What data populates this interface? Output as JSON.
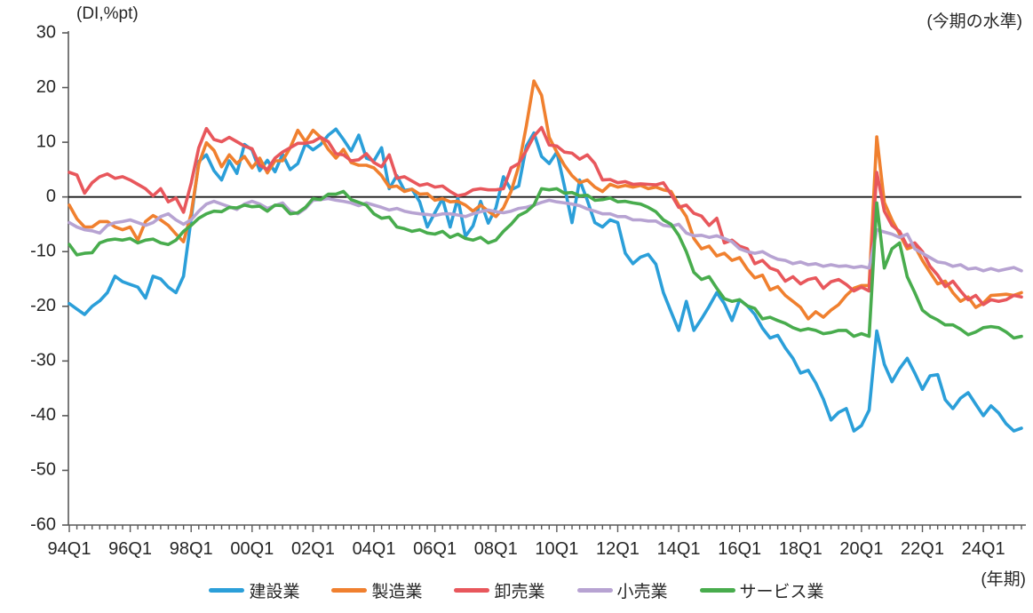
{
  "chart_data": {
    "type": "line",
    "title": "",
    "y_unit_label": "(DI,%pt)",
    "right_annotation": "(今期の水準)",
    "x_unit_label": "(年期)",
    "x_start": "1994Q1",
    "x_end": "2025Q2",
    "x_frequency": "quarterly",
    "x_tick_labels": [
      "94Q1",
      "96Q1",
      "98Q1",
      "00Q1",
      "02Q1",
      "04Q1",
      "06Q1",
      "08Q1",
      "10Q1",
      "12Q1",
      "14Q1",
      "16Q1",
      "18Q1",
      "20Q1",
      "22Q1",
      "24Q1"
    ],
    "x_label_every_n_quarters": 8,
    "ylim": [
      -60,
      30
    ],
    "y_ticks": [
      30,
      20,
      10,
      0,
      -10,
      -20,
      -30,
      -40,
      -50,
      -60
    ],
    "zero_line": true,
    "grid": false,
    "legend_position": "bottom",
    "axis_color": "#595959",
    "zero_line_color": "#1a1a1a",
    "text_color": "#262626",
    "series": [
      {
        "key": "construction",
        "name": "建設業",
        "color": "#2B9FD9",
        "values": [
          -19.5,
          -20.5,
          -21.5,
          -20,
          -19,
          -17.5,
          -14.5,
          -15.5,
          -16,
          -16.5,
          -18.5,
          -14.5,
          -15,
          -16.5,
          -17.5,
          -14.5,
          -4,
          6.5,
          7.7,
          4.8,
          3.1,
          6.6,
          4.3,
          9.6,
          8.6,
          4.8,
          6.7,
          4.6,
          7.8,
          5,
          6.1,
          9.7,
          8.6,
          9.6,
          11.3,
          12.4,
          10.5,
          8.4,
          11.3,
          7.1,
          6.6,
          9,
          1.5,
          3.9,
          1.2,
          1.4,
          -0.9,
          -5.5,
          -2.9,
          -0.3,
          -5.5,
          -0.2,
          -7.2,
          -5.3,
          -0.8,
          -4.8,
          -2,
          3.7,
          1.3,
          2,
          9.3,
          11.7,
          7.4,
          6.1,
          8.2,
          2,
          -4.7,
          3.1,
          -0.6,
          -4.7,
          -5.5,
          -4.2,
          -4.7,
          -10.3,
          -12.2,
          -11,
          -10.5,
          -12.3,
          -17.5,
          -21,
          -24.4,
          -19.1,
          -24.4,
          -22.3,
          -20,
          -17.5,
          -19.5,
          -22.6,
          -18.8,
          -19.9,
          -21.5,
          -24,
          -25.8,
          -25.3,
          -27.6,
          -29.5,
          -32.2,
          -31.7,
          -34,
          -37,
          -40.8,
          -39.4,
          -38.7,
          -42.8,
          -41.8,
          -39,
          -24.5,
          -30.6,
          -33.8,
          -31.4,
          -29.5,
          -32.2,
          -35.2,
          -32.7,
          -32.5,
          -37.1,
          -38.7,
          -36.8,
          -35.8,
          -37.9,
          -40,
          -38.2,
          -39.5,
          -41.5,
          -42.8,
          -42.3
        ]
      },
      {
        "key": "manufacturing",
        "name": "製造業",
        "color": "#F0802F",
        "values": [
          -1.5,
          -4,
          -5.5,
          -5.5,
          -4.5,
          -4.5,
          -5.5,
          -6,
          -5.5,
          -7.9,
          -4.5,
          -3.4,
          -4.2,
          -5.2,
          -6.8,
          -8.2,
          -3.1,
          6,
          9.9,
          8.5,
          5.5,
          7.7,
          6.1,
          7.4,
          5.3,
          7.1,
          4.4,
          6.6,
          6.6,
          9,
          12.2,
          10.1,
          12.2,
          10.9,
          8.7,
          7.1,
          8.7,
          6.3,
          5.8,
          5.8,
          5.3,
          3.9,
          1.8,
          2,
          1,
          1.4,
          0.5,
          0.6,
          -0.6,
          -0.3,
          -0.9,
          -0.8,
          -1.5,
          -2.6,
          -1.5,
          -2.6,
          -3.6,
          -2,
          1,
          5.6,
          13,
          21.2,
          18.6,
          10.9,
          8.2,
          5.8,
          3.9,
          2.6,
          3.1,
          1.8,
          1,
          2.3,
          1.8,
          2.1,
          1.8,
          2.1,
          1.5,
          1.8,
          1.3,
          1,
          -1.5,
          -3.6,
          -7.6,
          -9.5,
          -9,
          -10.8,
          -10.3,
          -11.6,
          -11.1,
          -13.2,
          -14.8,
          -14.3,
          -17,
          -16.4,
          -18,
          -19.1,
          -20.2,
          -22.3,
          -21,
          -22,
          -20.7,
          -19.7,
          -18,
          -16.7,
          -16.2,
          -16.2,
          11,
          -1,
          -4.2,
          -6.8,
          -9.5,
          -9,
          -11.6,
          -13.8,
          -15.9,
          -15.4,
          -17.5,
          -19.1,
          -18.3,
          -20.2,
          -19.4,
          -18,
          -17.9,
          -17.8,
          -18,
          -17.5
        ]
      },
      {
        "key": "wholesale",
        "name": "卸売業",
        "color": "#E8575C",
        "values": [
          4.5,
          4,
          0.7,
          2.6,
          3.7,
          4.2,
          3.4,
          3.7,
          3.1,
          2.3,
          1.5,
          0.2,
          1.5,
          -0.9,
          -0.2,
          -2.8,
          2.5,
          9,
          12.5,
          10.5,
          10.1,
          10.9,
          10.1,
          9.3,
          8.8,
          5.8,
          5,
          7.1,
          8.2,
          9,
          9.8,
          9.8,
          10.1,
          10.9,
          10.1,
          7.9,
          7.7,
          6.6,
          6.8,
          7.9,
          6.3,
          5.5,
          7.7,
          3.4,
          3.7,
          2.9,
          2.1,
          2.4,
          1.8,
          2,
          1,
          0.2,
          0.5,
          1.3,
          1.5,
          1.3,
          1.3,
          1.5,
          5.3,
          6.1,
          8.5,
          11.1,
          12.7,
          9.5,
          9.3,
          8.2,
          8,
          6.9,
          7.7,
          6.1,
          3.1,
          3.2,
          2.6,
          2.8,
          2.3,
          2.4,
          2.3,
          2.2,
          2.6,
          0.5,
          -1.9,
          -1.5,
          -3,
          -3.5,
          -5.2,
          -3.9,
          -8.4,
          -7.9,
          -9,
          -9.5,
          -12.2,
          -11.6,
          -13,
          -13.5,
          -15.4,
          -14.6,
          -15.9,
          -15.1,
          -14.8,
          -16.7,
          -15.5,
          -15.1,
          -16,
          -17.2,
          -16.5,
          -17.2,
          4.5,
          -2.6,
          -5.2,
          -6.3,
          -9,
          -8.4,
          -10,
          -12.7,
          -14.3,
          -16.4,
          -15.4,
          -17.2,
          -18.8,
          -18,
          -19.7,
          -18.8,
          -19.1,
          -18.8,
          -18,
          -18.3
        ]
      },
      {
        "key": "retail",
        "name": "小売業",
        "color": "#B7A3D2",
        "values": [
          -4.7,
          -5.5,
          -6,
          -6.2,
          -6.6,
          -5.2,
          -4.7,
          -4.5,
          -4.2,
          -4.7,
          -5.2,
          -4.7,
          -3.6,
          -3.1,
          -4.2,
          -5,
          -4.2,
          -2.6,
          -1.3,
          -0.8,
          -1.3,
          -1.8,
          -2.3,
          -1.3,
          -0.8,
          -1.3,
          -2.1,
          -1.6,
          -1.1,
          -2.6,
          -3.1,
          -2.1,
          -0.6,
          -0.5,
          -0.3,
          -0.6,
          -0.8,
          -1.1,
          -1.6,
          -1.1,
          -1.5,
          -1.9,
          -2.4,
          -2.1,
          -2.6,
          -2.9,
          -3.1,
          -3.2,
          -3.4,
          -3.1,
          -3.1,
          -3.3,
          -3.6,
          -3.1,
          -2.7,
          -2.4,
          -2.7,
          -2.9,
          -2.6,
          -2.1,
          -1.9,
          -1.5,
          -1,
          -0.6,
          -0.9,
          -1.1,
          -1.3,
          -1.6,
          -2.2,
          -2.6,
          -3.1,
          -3.1,
          -3.6,
          -3.6,
          -4.2,
          -4.2,
          -4.4,
          -4.4,
          -5.2,
          -5.4,
          -5,
          -6.6,
          -7.1,
          -7,
          -7.4,
          -7.1,
          -7.6,
          -8.2,
          -9.5,
          -10,
          -10.3,
          -10,
          -10.8,
          -11.4,
          -11.6,
          -12.2,
          -11.9,
          -12.4,
          -12.2,
          -12.7,
          -12.4,
          -12.7,
          -12.6,
          -12.9,
          -12.7,
          -13,
          -6,
          -6.4,
          -6.8,
          -7.4,
          -6.8,
          -9.5,
          -10.3,
          -11.1,
          -11.9,
          -12.1,
          -12.7,
          -12.4,
          -13.2,
          -13,
          -13.5,
          -13.1,
          -13.5,
          -13.2,
          -12.9,
          -13.5
        ]
      },
      {
        "key": "services",
        "name": "サービス業",
        "color": "#48AC4D",
        "values": [
          -8.7,
          -10.6,
          -10.3,
          -10.2,
          -8.4,
          -7.9,
          -7.7,
          -7.9,
          -7.6,
          -8.4,
          -7.9,
          -7.7,
          -8.4,
          -8.7,
          -7.9,
          -6.3,
          -5.2,
          -3.9,
          -3.1,
          -2.6,
          -2.7,
          -1.9,
          -2,
          -1.5,
          -1.8,
          -1.7,
          -2.6,
          -1.5,
          -1.6,
          -3.1,
          -2.9,
          -1.9,
          -0.3,
          -0.5,
          0.5,
          0.5,
          1,
          -0.5,
          -1,
          -1.5,
          -3.1,
          -3.9,
          -3.7,
          -5.5,
          -5.8,
          -6.3,
          -6,
          -6.6,
          -6.8,
          -6.3,
          -7.4,
          -6.8,
          -7.6,
          -7.9,
          -7.4,
          -8.4,
          -7.9,
          -6.3,
          -5,
          -3.4,
          -2.7,
          -1.5,
          1.5,
          1.3,
          1.5,
          0.7,
          0.8,
          0.2,
          0.3,
          -0.6,
          -0.5,
          -0.2,
          -0.9,
          -0.8,
          -1.1,
          -1.3,
          -1.9,
          -2.7,
          -4.2,
          -5,
          -7,
          -10,
          -13.8,
          -15.1,
          -14.6,
          -16.7,
          -18.6,
          -19.1,
          -18.8,
          -19.9,
          -20.4,
          -22.3,
          -22,
          -22.6,
          -23.1,
          -23.9,
          -24.4,
          -24.1,
          -24.4,
          -25,
          -24.8,
          -24.4,
          -24.4,
          -25.5,
          -25,
          -25.5,
          -1.1,
          -13,
          -9.5,
          -8.4,
          -14.6,
          -17.5,
          -20.7,
          -21.8,
          -22.5,
          -23.4,
          -23.4,
          -24.2,
          -25.2,
          -24.7,
          -23.9,
          -23.7,
          -23.9,
          -24.7,
          -25.8,
          -25.5
        ]
      }
    ]
  }
}
